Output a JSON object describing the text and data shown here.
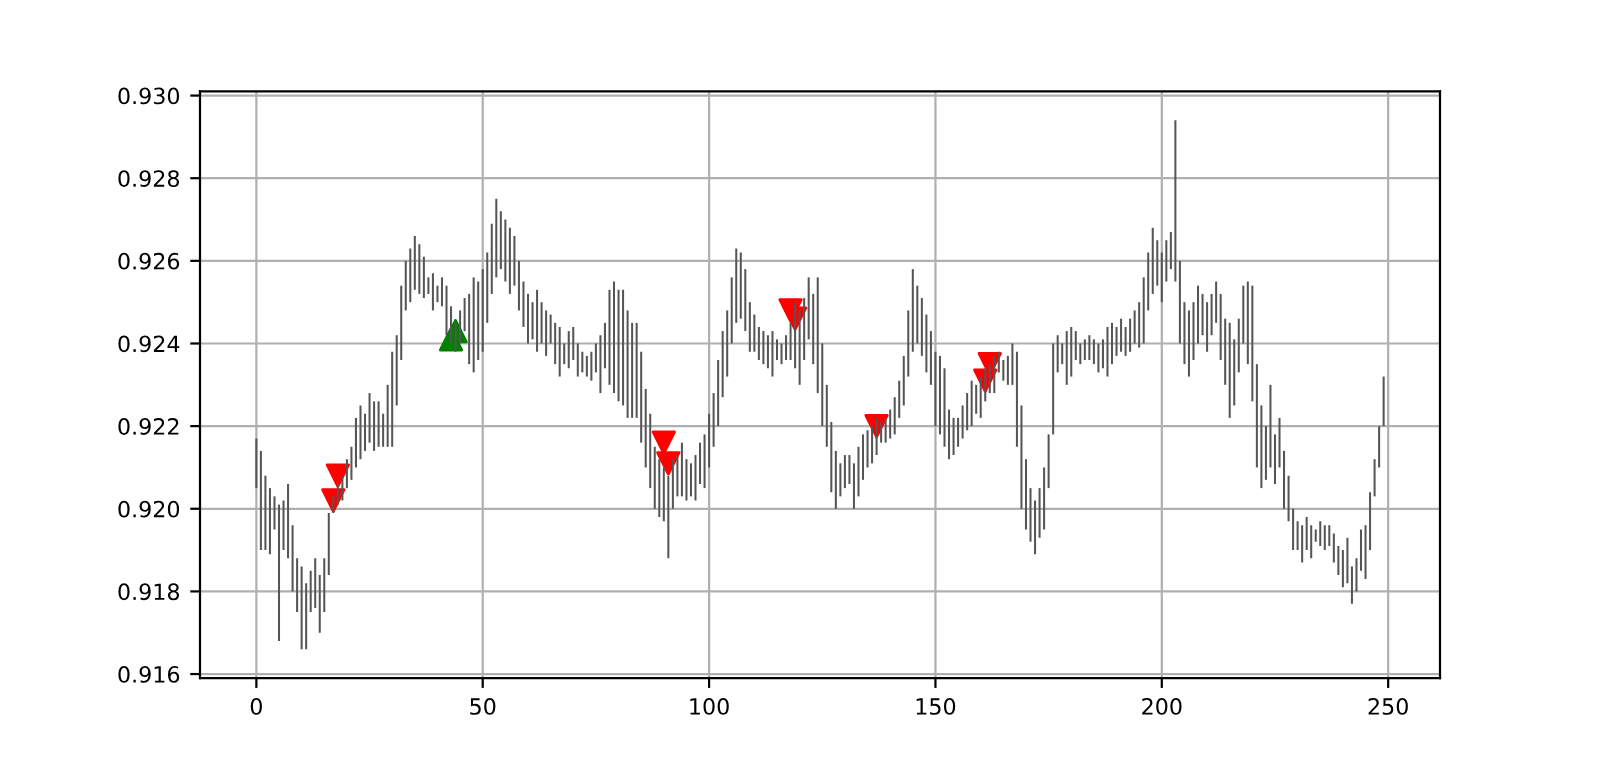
{
  "chart_data": {
    "type": "bar",
    "xlim": [
      -12.45,
      261.45
    ],
    "ylim": [
      0.9159,
      0.9301
    ],
    "xticks": [
      0,
      50,
      100,
      150,
      200,
      250
    ],
    "yticks": [
      0.916,
      0.918,
      {
        "value": 0.92,
        "label": "0.920"
      },
      0.922,
      0.924,
      0.926,
      0.928,
      {
        "value": 0.93,
        "label": "0.930"
      }
    ],
    "grid": true,
    "series": [
      {
        "color": "#555555",
        "x": [
          0,
          1,
          2,
          3,
          4,
          5,
          6,
          7,
          8,
          9,
          10,
          11,
          12,
          13,
          14,
          15,
          16,
          17,
          18,
          19,
          20,
          21,
          22,
          23,
          24,
          25,
          26,
          27,
          28,
          29,
          30,
          31,
          32,
          33,
          34,
          35,
          36,
          37,
          38,
          39,
          40,
          41,
          42,
          43,
          44,
          45,
          46,
          47,
          48,
          49,
          50,
          51,
          52,
          53,
          54,
          55,
          56,
          57,
          58,
          59,
          60,
          61,
          62,
          63,
          64,
          65,
          66,
          67,
          68,
          69,
          70,
          71,
          72,
          73,
          74,
          75,
          76,
          77,
          78,
          79,
          80,
          81,
          82,
          83,
          84,
          85,
          86,
          87,
          88,
          89,
          90,
          91,
          92,
          93,
          94,
          95,
          96,
          97,
          98,
          99,
          100,
          101,
          102,
          103,
          104,
          105,
          106,
          107,
          108,
          109,
          110,
          111,
          112,
          113,
          114,
          115,
          116,
          117,
          118,
          119,
          120,
          121,
          122,
          123,
          124,
          125,
          126,
          127,
          128,
          129,
          130,
          131,
          132,
          133,
          134,
          135,
          136,
          137,
          138,
          139,
          140,
          141,
          142,
          143,
          144,
          145,
          146,
          147,
          148,
          149,
          150,
          151,
          152,
          153,
          154,
          155,
          156,
          157,
          158,
          159,
          160,
          161,
          162,
          163,
          164,
          165,
          166,
          167,
          168,
          169,
          170,
          171,
          172,
          173,
          174,
          175,
          176,
          177,
          178,
          179,
          180,
          181,
          182,
          183,
          184,
          185,
          186,
          187,
          188,
          189,
          190,
          191,
          192,
          193,
          194,
          195,
          196,
          197,
          198,
          199,
          200,
          201,
          202,
          203,
          204,
          205,
          206,
          207,
          208,
          209,
          210,
          211,
          212,
          213,
          214,
          215,
          216,
          217,
          218,
          219,
          220,
          221,
          222,
          223,
          224,
          225,
          226,
          227,
          228,
          229,
          230,
          231,
          232,
          233,
          234,
          235,
          236,
          237,
          238,
          239,
          240,
          241,
          242,
          243,
          244,
          245,
          246,
          247,
          248,
          249
        ],
        "base": [
          0.9205,
          0.919,
          0.919,
          0.9189,
          0.9195,
          0.9168,
          0.919,
          0.9188,
          0.918,
          0.9175,
          0.9166,
          0.9166,
          0.9175,
          0.9176,
          0.917,
          0.9175,
          0.9184,
          0.9199,
          0.9201,
          0.9202,
          0.9205,
          0.9207,
          0.921,
          0.9212,
          0.9214,
          0.9216,
          0.9214,
          0.9215,
          0.9215,
          0.9215,
          0.9215,
          0.9225,
          0.9236,
          0.9248,
          0.925,
          0.9253,
          0.9252,
          0.9251,
          0.9252,
          0.9248,
          0.925,
          0.9249,
          0.9242,
          0.924,
          0.9238,
          0.924,
          0.9243,
          0.9235,
          0.9233,
          0.9236,
          0.9238,
          0.9245,
          0.9252,
          0.9256,
          0.9258,
          0.9255,
          0.9252,
          0.9254,
          0.9248,
          0.9244,
          0.924,
          0.9241,
          0.9238,
          0.924,
          0.9237,
          0.924,
          0.9235,
          0.9232,
          0.9235,
          0.9234,
          0.9236,
          0.9232,
          0.9233,
          0.9232,
          0.9231,
          0.9233,
          0.9228,
          0.9234,
          0.923,
          0.9228,
          0.9226,
          0.9225,
          0.9222,
          0.9222,
          0.9222,
          0.9216,
          0.921,
          0.9205,
          0.92,
          0.9198,
          0.9197,
          0.9188,
          0.92,
          0.9203,
          0.9203,
          0.9202,
          0.9203,
          0.9202,
          0.9206,
          0.9205,
          0.921,
          0.9215,
          0.922,
          0.9227,
          0.9232,
          0.924,
          0.9245,
          0.9246,
          0.9243,
          0.9238,
          0.9238,
          0.9236,
          0.9235,
          0.9234,
          0.9232,
          0.9236,
          0.9235,
          0.9236,
          0.9236,
          0.9234,
          0.923,
          0.9236,
          0.9241,
          0.9235,
          0.9228,
          0.922,
          0.9215,
          0.9204,
          0.92,
          0.9203,
          0.9205,
          0.9206,
          0.92,
          0.9203,
          0.9207,
          0.921,
          0.9211,
          0.9213,
          0.9216,
          0.9216,
          0.9217,
          0.9218,
          0.9222,
          0.9225,
          0.9232,
          0.9238,
          0.924,
          0.9237,
          0.9233,
          0.923,
          0.922,
          0.9218,
          0.9215,
          0.9212,
          0.9213,
          0.9215,
          0.9217,
          0.9219,
          0.922,
          0.9223,
          0.9222,
          0.9226,
          0.9228,
          0.9228,
          0.9233,
          0.9231,
          0.923,
          0.923,
          0.9215,
          0.92,
          0.9195,
          0.9192,
          0.9189,
          0.9193,
          0.9195,
          0.9205,
          0.9218,
          0.9233,
          0.9235,
          0.923,
          0.9232,
          0.9236,
          0.9235,
          0.9236,
          0.9236,
          0.9235,
          0.9233,
          0.9234,
          0.9232,
          0.9235,
          0.9237,
          0.9238,
          0.9237,
          0.9238,
          0.924,
          0.9239,
          0.924,
          0.9248,
          0.9252,
          0.9254,
          0.925,
          0.9255,
          0.9258,
          0.9255,
          0.924,
          0.9235,
          0.9232,
          0.9236,
          0.924,
          0.9242,
          0.9238,
          0.9242,
          0.9245,
          0.9236,
          0.923,
          0.9222,
          0.9225,
          0.9233,
          0.924,
          0.9235,
          0.9226,
          0.921,
          0.9205,
          0.9207,
          0.921,
          0.9206,
          0.921,
          0.92,
          0.9197,
          0.919,
          0.919,
          0.9187,
          0.919,
          0.9188,
          0.9192,
          0.9191,
          0.919,
          0.9191,
          0.9187,
          0.9184,
          0.9181,
          0.9182,
          0.9177,
          0.918,
          0.9185,
          0.9183,
          0.919,
          0.9203,
          0.921,
          0.922
        ],
        "values": [
          0.0012,
          0.0024,
          0.0018,
          0.0016,
          0.0008,
          0.0033,
          0.0012,
          0.0018,
          0.0016,
          0.0013,
          0.002,
          0.0016,
          0.001,
          0.0012,
          0.0014,
          0.0013,
          0.0015,
          0.0004,
          0.0005,
          0.0006,
          0.0007,
          0.0008,
          0.0012,
          0.0013,
          0.0009,
          0.0012,
          0.0012,
          0.0011,
          0.0008,
          0.0015,
          0.0023,
          0.0017,
          0.0018,
          0.0012,
          0.0013,
          0.0013,
          0.0012,
          0.001,
          0.0004,
          0.0009,
          0.0004,
          0.0007,
          0.0012,
          0.0009,
          0.0007,
          0.0008,
          0.0008,
          0.0017,
          0.0023,
          0.0019,
          0.002,
          0.0017,
          0.0017,
          0.0019,
          0.0014,
          0.0015,
          0.0016,
          0.0012,
          0.0012,
          0.0011,
          0.0012,
          0.0009,
          0.0015,
          0.001,
          0.0011,
          0.0007,
          0.001,
          0.0012,
          0.0005,
          0.0009,
          0.0008,
          0.0008,
          0.0005,
          0.0005,
          0.0007,
          0.0007,
          0.0014,
          0.0011,
          0.0023,
          0.0027,
          0.0027,
          0.0028,
          0.0026,
          0.0023,
          0.0023,
          0.0022,
          0.0019,
          0.0018,
          0.0015,
          0.0014,
          0.0013,
          0.002,
          0.0012,
          0.001,
          0.0013,
          0.001,
          0.0008,
          0.0011,
          0.001,
          0.0013,
          0.0013,
          0.0013,
          0.0016,
          0.0016,
          0.0016,
          0.0016,
          0.0018,
          0.0016,
          0.0015,
          0.0012,
          0.0009,
          0.0008,
          0.0008,
          0.0008,
          0.0011,
          0.0005,
          0.0005,
          0.0006,
          0.0009,
          0.0016,
          0.0018,
          0.0015,
          0.0015,
          0.0017,
          0.0028,
          0.002,
          0.0015,
          0.0017,
          0.0014,
          0.0008,
          0.0008,
          0.0007,
          0.0011,
          0.0012,
          0.0011,
          0.0009,
          0.0009,
          0.0009,
          0.0005,
          0.0006,
          0.0007,
          0.0009,
          0.0009,
          0.0012,
          0.0016,
          0.002,
          0.0014,
          0.0014,
          0.0014,
          0.0013,
          0.0018,
          0.0019,
          0.0019,
          0.0012,
          0.0009,
          0.0007,
          0.0008,
          0.0009,
          0.0011,
          0.0007,
          0.001,
          0.0008,
          0.0007,
          0.0009,
          0.0005,
          0.0005,
          0.0007,
          0.001,
          0.0023,
          0.0025,
          0.0017,
          0.0013,
          0.0013,
          0.0012,
          0.0015,
          0.0013,
          0.0022,
          0.0009,
          0.0005,
          0.0013,
          0.0012,
          0.0007,
          0.0005,
          0.0005,
          0.0006,
          0.0006,
          0.0007,
          0.0007,
          0.0012,
          0.001,
          0.0007,
          0.0008,
          0.0007,
          0.0008,
          0.0008,
          0.0011,
          0.0016,
          0.0014,
          0.0016,
          0.0011,
          0.0012,
          0.001,
          0.0009,
          0.0039,
          0.002,
          0.0015,
          0.0016,
          0.0014,
          0.0014,
          0.001,
          0.0012,
          0.001,
          0.001,
          0.0016,
          0.0016,
          0.0023,
          0.0016,
          0.0013,
          0.0014,
          0.002,
          0.0028,
          0.0025,
          0.002,
          0.0013,
          0.002,
          0.0012,
          0.0012,
          0.0014,
          0.0011,
          0.001,
          0.0007,
          0.0009,
          0.0008,
          0.0008,
          0.0003,
          0.0006,
          0.0006,
          0.0005,
          0.0007,
          0.0007,
          0.0009,
          0.0011,
          0.0009,
          0.0008,
          0.001,
          0.0013,
          0.0014,
          0.0009,
          0.001,
          0.0012
        ]
      },
      {
        "type": "scatter",
        "marker": "triangle_down",
        "color": "#ff0000",
        "x": [
          17,
          18,
          90,
          91,
          118,
          119,
          137,
          161,
          162
        ],
        "values": [
          0.9202,
          0.9208,
          0.9216,
          0.9211,
          0.9248,
          0.9246,
          0.922,
          0.9231,
          0.9235
        ]
      },
      {
        "type": "scatter",
        "marker": "triangle",
        "color": "#008000",
        "x": [
          43,
          44
        ],
        "values": [
          0.9241,
          0.9243
        ]
      }
    ]
  }
}
